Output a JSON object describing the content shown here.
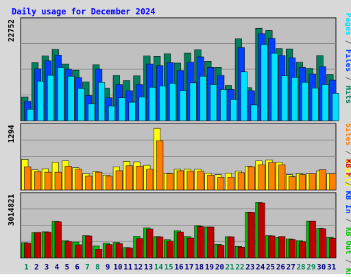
{
  "colors": {
    "background": "#d8d8d8",
    "panel": "#c0c0c0",
    "title": "#0000ff",
    "hits": "#00805c",
    "files": "#0040ff",
    "pages": "#00e0ff",
    "visits": "#ffff00",
    "sites": "#ff8000",
    "kb_in": "#00c000",
    "kb_out": "#00c000",
    "kb_f": "#c00000",
    "day_weekday": "#000080",
    "day_weekend": "#00805c"
  },
  "chart_data": {
    "type": "bar",
    "title": "Daily usage for December 2024",
    "x": [
      1,
      2,
      3,
      4,
      5,
      6,
      7,
      8,
      9,
      10,
      11,
      12,
      13,
      14,
      15,
      16,
      17,
      18,
      19,
      20,
      21,
      22,
      23,
      24,
      25,
      26,
      27,
      28,
      29,
      30,
      31
    ],
    "weekend_days": [
      1,
      7,
      8,
      14,
      15,
      21,
      22,
      28,
      29
    ],
    "panels": [
      {
        "id": "hits-files-pages",
        "ymax_label": "22752",
        "ymax": 22752,
        "series": [
          {
            "name": "Hits",
            "color": "#00805c",
            "values": [
              5400,
              13200,
              14700,
              16200,
              12900,
              11500,
              8800,
              12700,
              7400,
              10300,
              9100,
              10200,
              14700,
              14600,
              15200,
              13100,
              15400,
              16100,
              13500,
              12100,
              8000,
              18600,
              7500,
              21000,
              20500,
              16400,
              16300,
              13300,
              11900,
              14800,
              10500
            ]
          },
          {
            "name": "Files",
            "color": "#0040ff",
            "values": [
              4400,
              11800,
              13600,
              14900,
              11700,
              9800,
              5700,
              11700,
              5200,
              8200,
              6800,
              8200,
              12900,
              12500,
              13200,
              11400,
              13300,
              14500,
              12100,
              10300,
              7100,
              16600,
              6800,
              19800,
              18700,
              14800,
              14300,
              12100,
              10600,
              12300,
              9200
            ]
          },
          {
            "name": "Pages",
            "color": "#00e0ff",
            "values": [
              2600,
              9000,
              10300,
              12100,
              10100,
              7300,
              3800,
              8700,
              3300,
              5200,
              4200,
              5400,
              7600,
              7900,
              8500,
              6800,
              8600,
              10100,
              8200,
              7100,
              4800,
              11100,
              3600,
              17300,
              15300,
              10200,
              9800,
              8700,
              7400,
              8200,
              6200
            ]
          }
        ]
      },
      {
        "id": "visits-sites",
        "ymax_label": "1294",
        "ymax": 1294,
        "series": [
          {
            "name": "Visits",
            "color": "#ffff00",
            "values": [
              620,
              410,
              430,
              560,
              590,
              450,
              330,
              370,
              300,
              470,
              580,
              570,
              500,
              1250,
              340,
              420,
              420,
              420,
              340,
              310,
              340,
              380,
              480,
              590,
              610,
              560,
              310,
              330,
              330,
              390,
              330
            ]
          },
          {
            "name": "Sites",
            "color": "#ff8000",
            "values": [
              470,
              370,
              360,
              360,
              480,
              420,
              280,
              360,
              280,
              390,
              490,
              480,
              420,
              1000,
              330,
              390,
              380,
              380,
              300,
              260,
              260,
              350,
              470,
              510,
              560,
              510,
              270,
              310,
              330,
              410,
              330
            ]
          }
        ]
      },
      {
        "id": "kb",
        "ymax_label": "3014821",
        "ymax": 3014821,
        "series": [
          {
            "name": "KB In",
            "color": "#00c000",
            "values": [
              730000,
              1220000,
              1260000,
              1770000,
              830000,
              760000,
              1070000,
              570000,
              710000,
              740000,
              500000,
              1040000,
              1450000,
              1030000,
              870000,
              1300000,
              1030000,
              1550000,
              1490000,
              650000,
              1020000,
              550000,
              2210000,
              2670000,
              1070000,
              980000,
              910000,
              830000,
              1780000,
              1420000,
              990000
            ]
          },
          {
            "name": "KB F",
            "color": "#c00000",
            "values": [
              710000,
              1230000,
              1240000,
              1740000,
              790000,
              630000,
              1060000,
              420000,
              640000,
              690000,
              470000,
              940000,
              1390000,
              1010000,
              810000,
              1250000,
              960000,
              1510000,
              1490000,
              610000,
              1010000,
              520000,
              2200000,
              2650000,
              1060000,
              1030000,
              880000,
              780000,
              1780000,
              1400000,
              950000
            ]
          }
        ]
      }
    ]
  },
  "side_labels": {
    "top": [
      {
        "text": "Pages",
        "color": "#00e0ff"
      },
      {
        "text": " / ",
        "color": "#606060"
      },
      {
        "text": "Files",
        "color": "#0040ff"
      },
      {
        "text": " / ",
        "color": "#606060"
      },
      {
        "text": "Hits",
        "color": "#00805c"
      }
    ],
    "middle": [
      {
        "text": "Sites",
        "color": "#ff8000"
      },
      {
        "text": " / ",
        "color": "#606060"
      },
      {
        "text": "Visits",
        "color": "#ffff00"
      }
    ],
    "bottom": [
      {
        "text": "KB F",
        "color": "#c00000"
      },
      {
        "text": " / ",
        "color": "#606060"
      },
      {
        "text": "KB In",
        "color": "#0040ff"
      },
      {
        "text": " / ",
        "color": "#606060"
      },
      {
        "text": "KB Out",
        "color": "#00c000"
      },
      {
        "text": " / ",
        "color": "#606060"
      },
      {
        "text": "KB In",
        "color": "#00c000"
      }
    ]
  }
}
